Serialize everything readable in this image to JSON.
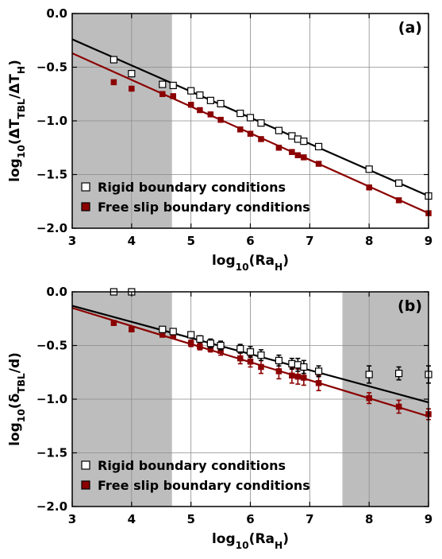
{
  "chart_data": [
    {
      "type": "scatter",
      "panel_label": "(a)",
      "xlabel": {
        "prefix": "log",
        "sub": "10",
        "open": "(Ra",
        "sub2": "H",
        "close": ")"
      },
      "ylabel": {
        "prefix": "log",
        "sub": "10",
        "open": "(ΔT",
        "sub2": "TBL",
        "mid": "/ΔT",
        "sub3": "H",
        "close": ")"
      },
      "xlim": [
        3,
        9
      ],
      "ylim": [
        -2.0,
        0.0
      ],
      "x_ticks": [
        "3",
        "4",
        "5",
        "6",
        "7",
        "8",
        "9"
      ],
      "y_ticks": [
        "0.0",
        "−0.5",
        "−1.0",
        "−1.5",
        "−2.0"
      ],
      "grid": true,
      "shaded_x_ranges": [
        [
          3,
          4.68
        ]
      ],
      "legend_position": "bottom-left",
      "series": [
        {
          "name": "Rigid boundary conditions",
          "marker": "open-square",
          "color": "#000000",
          "x": [
            3.7,
            4.0,
            4.52,
            4.7,
            5.0,
            5.15,
            5.33,
            5.5,
            5.83,
            6.0,
            6.18,
            6.48,
            6.7,
            6.8,
            6.9,
            7.15,
            8.0,
            8.5,
            9.0
          ],
          "y": [
            -0.43,
            -0.56,
            -0.66,
            -0.67,
            -0.72,
            -0.76,
            -0.81,
            -0.84,
            -0.93,
            -0.97,
            -1.02,
            -1.09,
            -1.14,
            -1.17,
            -1.19,
            -1.24,
            -1.45,
            -1.58,
            -1.7
          ],
          "fit": {
            "x": [
              3,
              9
            ],
            "y": [
              -0.24,
              -1.7
            ]
          }
        },
        {
          "name": "Free slip boundary conditions",
          "marker": "filled-square",
          "color": "#8b0000",
          "x": [
            3.7,
            4.0,
            4.52,
            4.7,
            5.0,
            5.15,
            5.33,
            5.5,
            5.83,
            6.0,
            6.18,
            6.48,
            6.7,
            6.8,
            6.9,
            7.15,
            8.0,
            8.5,
            9.0
          ],
          "y": [
            -0.64,
            -0.7,
            -0.75,
            -0.77,
            -0.85,
            -0.9,
            -0.94,
            -0.99,
            -1.08,
            -1.12,
            -1.17,
            -1.25,
            -1.29,
            -1.32,
            -1.34,
            -1.4,
            -1.62,
            -1.74,
            -1.86
          ],
          "fit": {
            "x": [
              3,
              9
            ],
            "y": [
              -0.37,
              -1.86
            ]
          }
        }
      ]
    },
    {
      "type": "scatter",
      "panel_label": "(b)",
      "xlabel": {
        "prefix": "log",
        "sub": "10",
        "open": "(Ra",
        "sub2": "H",
        "close": ")"
      },
      "ylabel": {
        "prefix": "log",
        "sub": "10",
        "open": "(δ",
        "sub2": "TBL",
        "mid": "/d",
        "sub3": "",
        "close": ")"
      },
      "xlim": [
        3,
        9
      ],
      "ylim": [
        -2.0,
        0.0
      ],
      "x_ticks": [
        "3",
        "4",
        "5",
        "6",
        "7",
        "8",
        "9"
      ],
      "y_ticks": [
        "0.0",
        "−0.5",
        "−1.0",
        "−1.5",
        "−2.0"
      ],
      "grid": true,
      "shaded_x_ranges": [
        [
          3,
          4.68
        ],
        [
          7.55,
          9
        ]
      ],
      "legend_position": "bottom-left",
      "series": [
        {
          "name": "Rigid boundary conditions",
          "marker": "open-square",
          "color": "#000000",
          "x": [
            3.7,
            4.0,
            4.52,
            4.7,
            5.0,
            5.15,
            5.33,
            5.5,
            5.83,
            6.0,
            6.18,
            6.48,
            6.7,
            6.8,
            6.9,
            7.15,
            8.0,
            8.5,
            9.0
          ],
          "y": [
            0.0,
            0.0,
            -0.35,
            -0.37,
            -0.4,
            -0.44,
            -0.48,
            -0.5,
            -0.53,
            -0.56,
            -0.59,
            -0.64,
            -0.67,
            -0.68,
            -0.7,
            -0.74,
            -0.77,
            -0.76,
            -0.77
          ],
          "err": [
            0,
            0,
            0,
            0,
            0,
            0.03,
            0.04,
            0.04,
            0.04,
            0.05,
            0.05,
            0.05,
            0.05,
            0.06,
            0.06,
            0.05,
            0.08,
            0.06,
            0.08
          ],
          "fit": {
            "x": [
              3,
              9
            ],
            "y": [
              -0.13,
              -1.03
            ]
          }
        },
        {
          "name": "Free slip boundary conditions",
          "marker": "filled-square",
          "color": "#8b0000",
          "x": [
            3.7,
            4.0,
            4.52,
            4.7,
            5.0,
            5.15,
            5.33,
            5.5,
            5.83,
            6.0,
            6.18,
            6.48,
            6.7,
            6.8,
            6.9,
            7.15,
            8.0,
            8.5,
            9.0
          ],
          "y": [
            -0.29,
            -0.35,
            -0.4,
            -0.41,
            -0.48,
            -0.51,
            -0.53,
            -0.55,
            -0.62,
            -0.65,
            -0.7,
            -0.74,
            -0.78,
            -0.79,
            -0.8,
            -0.85,
            -0.99,
            -1.07,
            -1.14
          ],
          "err": [
            0.02,
            0.02,
            0.02,
            0.02,
            0.03,
            0.03,
            0.03,
            0.04,
            0.05,
            0.05,
            0.06,
            0.07,
            0.07,
            0.07,
            0.07,
            0.07,
            0.05,
            0.06,
            0.05
          ],
          "fit": {
            "x": [
              3,
              9
            ],
            "y": [
              -0.15,
              -1.16
            ]
          }
        }
      ]
    }
  ]
}
